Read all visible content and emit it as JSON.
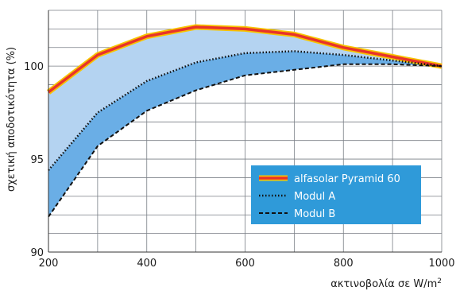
{
  "chart_data": {
    "type": "line",
    "xlabel": "ακτινοβολία σε W/m",
    "xlabel_sup": "2",
    "ylabel": "σχετική αποδοτικότητα (%)",
    "xlim": [
      200,
      1000
    ],
    "ylim": [
      90,
      103
    ],
    "x_ticks": [
      200,
      400,
      600,
      800,
      1000
    ],
    "y_ticks": [
      90,
      95,
      100
    ],
    "grid": true,
    "legend_position": "lower-right",
    "colors": {
      "plot_background": "#ffffff",
      "band_upper": "#b4d3f1",
      "band_lower": "#6aaee6",
      "legend_background": "#2f9ad9",
      "pyramid_line": "#e8332a",
      "pyramid_outline": "#f7c400",
      "module_lines": "#111111"
    },
    "series": [
      {
        "name": "alfasolar Pyramid 60",
        "style": "solid",
        "x": [
          200,
          300,
          400,
          500,
          600,
          700,
          800,
          900,
          1000
        ],
        "y": [
          98.6,
          100.6,
          101.6,
          102.1,
          102.0,
          101.7,
          101.0,
          100.5,
          100.0
        ]
      },
      {
        "name": "Modul A",
        "style": "dotted",
        "x": [
          200,
          300,
          400,
          500,
          600,
          700,
          800,
          900,
          1000
        ],
        "y": [
          94.4,
          97.5,
          99.2,
          100.2,
          100.7,
          100.8,
          100.6,
          100.3,
          100.0
        ]
      },
      {
        "name": "Modul B",
        "style": "dashed",
        "x": [
          200,
          300,
          400,
          500,
          600,
          700,
          800,
          900,
          1000
        ],
        "y": [
          91.9,
          95.7,
          97.6,
          98.7,
          99.5,
          99.8,
          100.1,
          100.1,
          100.0
        ]
      }
    ]
  }
}
